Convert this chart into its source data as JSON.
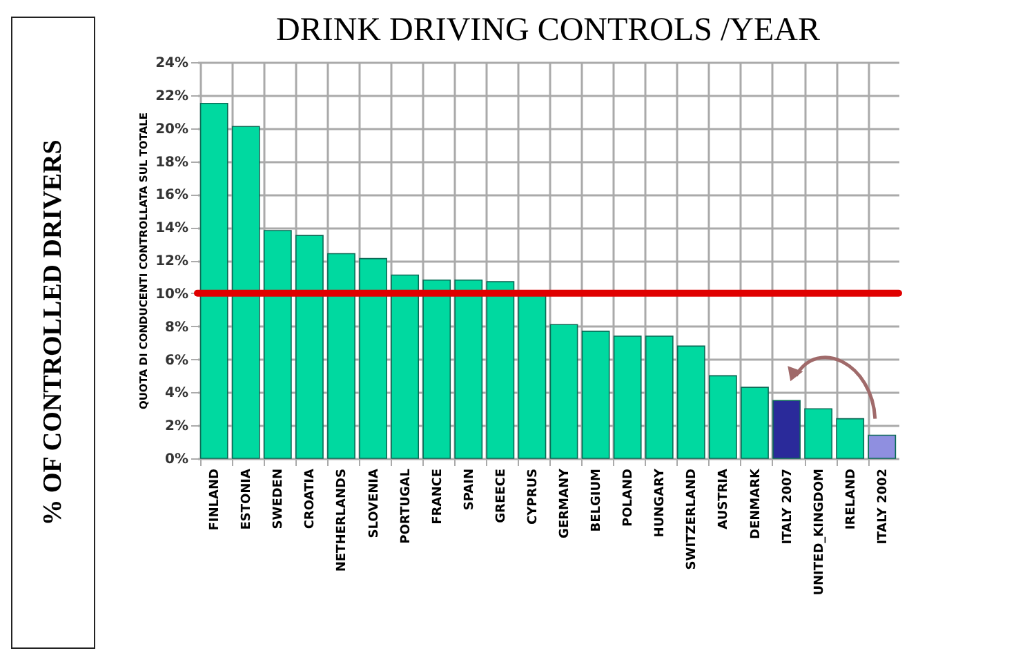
{
  "chart_data": {
    "type": "bar",
    "title": "DRINK DRIVING CONTROLS /YEAR",
    "ylabel": "QUOTA DI CONDUCENTI CONTROLLATA SUL TOTALE",
    "annotations": [
      "% OF CONTROLLED DRIVERS"
    ],
    "categories": [
      "FINLAND",
      "ESTONIA",
      "SWEDEN",
      "CROATIA",
      "NETHERLANDS",
      "SLOVENIA",
      "PORTUGAL",
      "FRANCE",
      "SPAIN",
      "GREECE",
      "CYPRUS",
      "GERMANY",
      "BELGIUM",
      "POLAND",
      "HUNGARY",
      "SWITZERLAND",
      "AUSTRIA",
      "DENMARK",
      "ITALY 2007",
      "UNITED_KINGDOM",
      "IRELAND",
      "ITALY 2002"
    ],
    "values": [
      21.5,
      20.1,
      13.8,
      13.5,
      12.4,
      12.1,
      11.1,
      10.8,
      10.8,
      10.7,
      10.0,
      8.1,
      7.7,
      7.4,
      7.4,
      6.8,
      5.0,
      4.3,
      3.5,
      3.0,
      2.4,
      1.4
    ],
    "colors": [
      "#00d9a0",
      "#00d9a0",
      "#00d9a0",
      "#00d9a0",
      "#00d9a0",
      "#00d9a0",
      "#00d9a0",
      "#00d9a0",
      "#00d9a0",
      "#00d9a0",
      "#00d9a0",
      "#00d9a0",
      "#00d9a0",
      "#00d9a0",
      "#00d9a0",
      "#00d9a0",
      "#00d9a0",
      "#00d9a0",
      "#2a2a9a",
      "#00d9a0",
      "#00d9a0",
      "#8f8fe0"
    ],
    "ylim": [
      0,
      24
    ],
    "yticks": [
      {
        "value": 0,
        "label": "0%"
      },
      {
        "value": 2,
        "label": "2%"
      },
      {
        "value": 4,
        "label": "4%"
      },
      {
        "value": 6,
        "label": "6%"
      },
      {
        "value": 8,
        "label": "8%"
      },
      {
        "value": 10,
        "label": "10%"
      },
      {
        "value": 12,
        "label": "12%"
      },
      {
        "value": 14,
        "label": "14%"
      },
      {
        "value": 16,
        "label": "16%"
      },
      {
        "value": 18,
        "label": "18%"
      },
      {
        "value": 20,
        "label": "20%"
      },
      {
        "value": 22,
        "label": "22%"
      },
      {
        "value": 24,
        "label": "24%"
      }
    ],
    "ref_lines": [
      {
        "axis": "y",
        "value": 10,
        "color": "#e00000"
      }
    ],
    "grid": true
  }
}
